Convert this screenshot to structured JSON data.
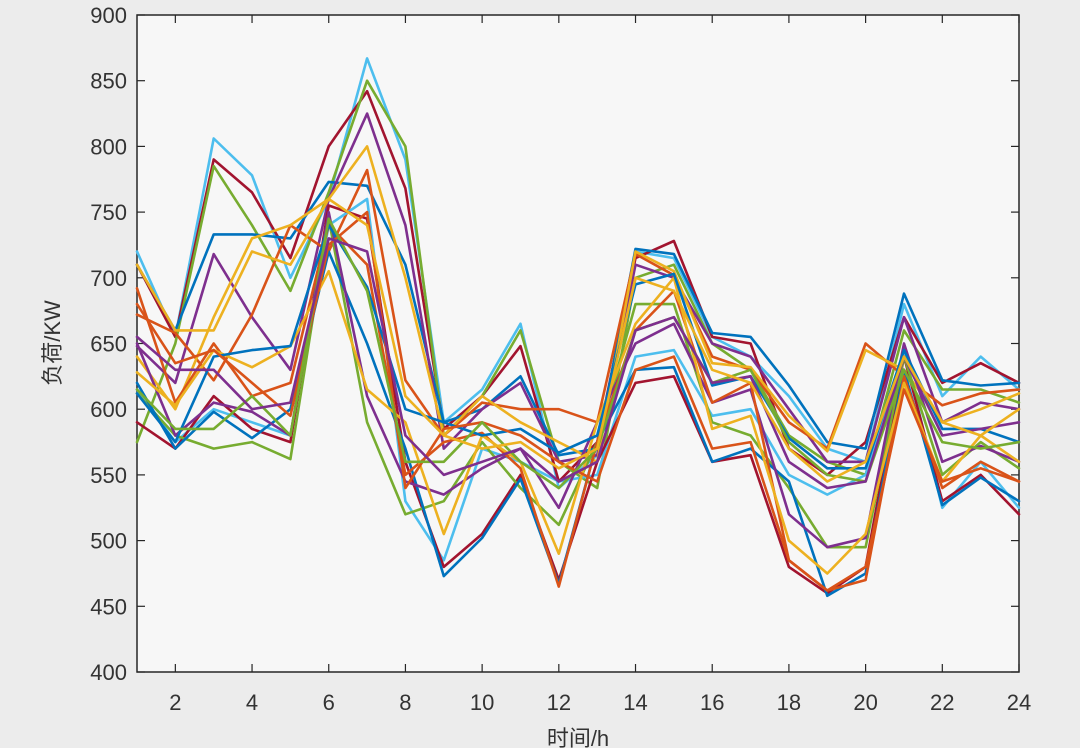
{
  "chart_data": {
    "type": "line",
    "title": "",
    "xlabel": "时间/h",
    "ylabel": "负荷/KW",
    "xlim": [
      1,
      24
    ],
    "ylim": [
      400,
      900
    ],
    "xticks": [
      2,
      4,
      6,
      8,
      10,
      12,
      14,
      16,
      18,
      20,
      22,
      24
    ],
    "yticks": [
      400,
      450,
      500,
      550,
      600,
      650,
      700,
      750,
      800,
      850,
      900
    ],
    "grid": false,
    "legend": "none",
    "x": [
      1,
      2,
      3,
      4,
      5,
      6,
      7,
      8,
      9,
      10,
      11,
      12,
      13,
      14,
      15,
      16,
      17,
      18,
      19,
      20,
      21,
      22,
      23,
      24
    ],
    "series": [
      {
        "color": "#4dbeee",
        "values": [
          720,
          655,
          806,
          778,
          700,
          760,
          867,
          790,
          590,
          615,
          665,
          540,
          565,
          720,
          715,
          655,
          640,
          610,
          570,
          560,
          680,
          610,
          640,
          615
        ]
      },
      {
        "color": "#a2142f",
        "values": [
          710,
          655,
          790,
          765,
          715,
          800,
          842,
          768,
          585,
          610,
          648,
          545,
          575,
          715,
          728,
          655,
          650,
          570,
          550,
          575,
          670,
          620,
          635,
          620
        ]
      },
      {
        "color": "#77ac30",
        "values": [
          575,
          650,
          785,
          740,
          690,
          765,
          850,
          800,
          580,
          610,
          660,
          560,
          540,
          700,
          710,
          650,
          630,
          580,
          560,
          550,
          660,
          615,
          615,
          605
        ]
      },
      {
        "color": "#0072bd",
        "values": [
          710,
          660,
          733,
          733,
          730,
          773,
          770,
          710,
          590,
          600,
          625,
          565,
          570,
          722,
          718,
          658,
          655,
          618,
          575,
          570,
          688,
          622,
          618,
          620
        ]
      },
      {
        "color": "#7e2f8e",
        "values": [
          648,
          620,
          718,
          670,
          630,
          760,
          825,
          740,
          570,
          600,
          620,
          560,
          565,
          710,
          700,
          650,
          640,
          600,
          560,
          560,
          670,
          590,
          605,
          600
        ]
      },
      {
        "color": "#d95319",
        "values": [
          672,
          658,
          622,
          672,
          740,
          720,
          782,
          622,
          580,
          605,
          600,
          600,
          590,
          718,
          702,
          640,
          630,
          590,
          570,
          650,
          625,
          603,
          612,
          615
        ]
      },
      {
        "color": "#edb120",
        "values": [
          640,
          600,
          670,
          730,
          740,
          760,
          800,
          700,
          580,
          610,
          590,
          575,
          560,
          720,
          705,
          635,
          632,
          595,
          568,
          645,
          630,
          590,
          600,
          612
        ]
      },
      {
        "color": "#4dbeee",
        "values": [
          615,
          575,
          600,
          590,
          580,
          740,
          760,
          530,
          485,
          570,
          560,
          545,
          550,
          640,
          645,
          595,
          600,
          550,
          535,
          550,
          645,
          525,
          560,
          525
        ]
      },
      {
        "color": "#a2142f",
        "values": [
          590,
          570,
          610,
          585,
          575,
          755,
          745,
          560,
          480,
          505,
          550,
          470,
          560,
          620,
          625,
          560,
          565,
          480,
          460,
          480,
          640,
          530,
          550,
          520
        ]
      },
      {
        "color": "#77ac30",
        "values": [
          612,
          580,
          570,
          575,
          562,
          745,
          590,
          520,
          530,
          575,
          540,
          512,
          575,
          680,
          680,
          590,
          580,
          540,
          495,
          495,
          640,
          550,
          575,
          555
        ]
      },
      {
        "color": "#0072bd",
        "values": [
          620,
          570,
          598,
          578,
          600,
          720,
          650,
          570,
          473,
          502,
          547,
          467,
          575,
          630,
          632,
          560,
          570,
          545,
          458,
          475,
          630,
          527,
          548,
          530
        ]
      },
      {
        "color": "#7e2f8e",
        "values": [
          650,
          580,
          605,
          598,
          580,
          750,
          610,
          545,
          535,
          555,
          570,
          525,
          590,
          650,
          665,
          605,
          615,
          520,
          495,
          502,
          650,
          560,
          572,
          560
        ]
      },
      {
        "color": "#d95319",
        "values": [
          692,
          605,
          650,
          610,
          620,
          740,
          710,
          550,
          575,
          582,
          555,
          465,
          575,
          660,
          690,
          605,
          620,
          485,
          462,
          470,
          625,
          540,
          560,
          545
        ]
      },
      {
        "color": "#edb120",
        "values": [
          628,
          603,
          645,
          632,
          648,
          705,
          615,
          590,
          505,
          580,
          560,
          490,
          590,
          665,
          700,
          585,
          595,
          500,
          475,
          505,
          620,
          545,
          580,
          560
        ]
      },
      {
        "color": "#0072bd",
        "values": [
          612,
          575,
          640,
          645,
          648,
          740,
          693,
          600,
          590,
          580,
          585,
          567,
          580,
          695,
          703,
          618,
          625,
          578,
          555,
          555,
          645,
          585,
          585,
          575
        ]
      },
      {
        "color": "#d95319",
        "values": [
          680,
          635,
          645,
          620,
          595,
          725,
          750,
          540,
          585,
          590,
          580,
          560,
          545,
          630,
          640,
          570,
          575,
          485,
          462,
          480,
          615,
          545,
          555,
          545
        ]
      },
      {
        "color": "#77ac30",
        "values": [
          615,
          585,
          585,
          610,
          580,
          745,
          690,
          560,
          560,
          590,
          560,
          540,
          570,
          660,
          670,
          620,
          630,
          575,
          550,
          545,
          630,
          575,
          570,
          575
        ]
      },
      {
        "color": "#7e2f8e",
        "values": [
          655,
          630,
          630,
          600,
          605,
          730,
          720,
          580,
          550,
          560,
          570,
          545,
          560,
          660,
          670,
          620,
          625,
          560,
          540,
          545,
          640,
          580,
          585,
          590
        ]
      },
      {
        "color": "#edb120",
        "values": [
          710,
          660,
          660,
          720,
          710,
          760,
          740,
          610,
          580,
          570,
          575,
          555,
          570,
          700,
          690,
          630,
          620,
          570,
          545,
          560,
          640,
          590,
          580,
          600
        ]
      }
    ]
  }
}
